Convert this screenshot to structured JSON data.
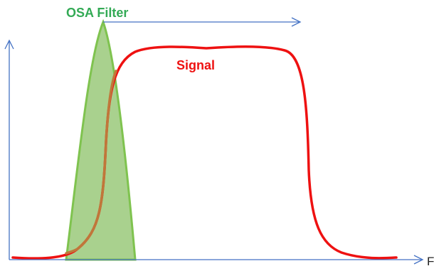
{
  "labels": {
    "filter": "OSA Filter",
    "signal": "Signal",
    "x_axis": "F"
  },
  "colors": {
    "signal": "#ee1111",
    "filter_fill": "#a9d18e",
    "filter_stroke": "#7fc34f",
    "filter_label": "#33aa55",
    "signal_label": "#ee1111",
    "axis": "#4472c4",
    "overlap_curve": "#c0773a"
  },
  "sweep_arrow": {
    "direction": "right"
  }
}
